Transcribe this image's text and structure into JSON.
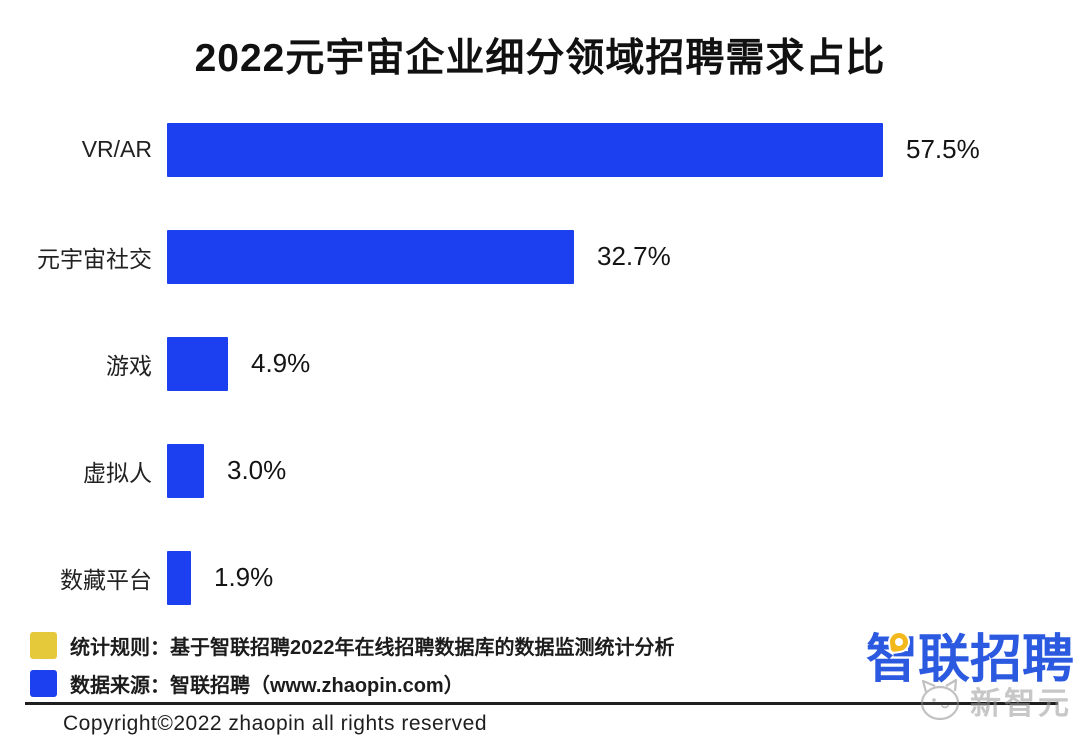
{
  "chart_data": {
    "type": "bar",
    "orientation": "horizontal",
    "title": "2022元宇宙企业细分领域招聘需求占比",
    "categories": [
      "VR/AR",
      "元宇宙社交",
      "游戏",
      "虚拟人",
      "数藏平台"
    ],
    "values": [
      57.5,
      32.7,
      4.9,
      3.0,
      1.9
    ],
    "value_labels": [
      "57.5%",
      "32.7%",
      "4.9%",
      "3.0%",
      "1.9%"
    ],
    "xlabel": "",
    "ylabel": "",
    "xlim": [
      0,
      62
    ],
    "grid": false,
    "legend_position": "none",
    "value_label_position": "right-of-bar",
    "bar_color": "#1c3ff0"
  },
  "footnotes": [
    {
      "swatch_color": "#e5c93a",
      "text": "统计规则：基于智联招聘2022年在线招聘数据库的数据监测统计分析"
    },
    {
      "swatch_color": "#1c3ff0",
      "text": "数据来源：智联招聘（www.zhaopin.com）"
    }
  ],
  "branding": {
    "logo_text": "智联招聘",
    "logo_color": "#2b59e0",
    "pin_color": "#f3b91c"
  },
  "watermark": {
    "text": "新智元"
  },
  "copyright": "Copyright©2022 zhaopin all rights reserved"
}
